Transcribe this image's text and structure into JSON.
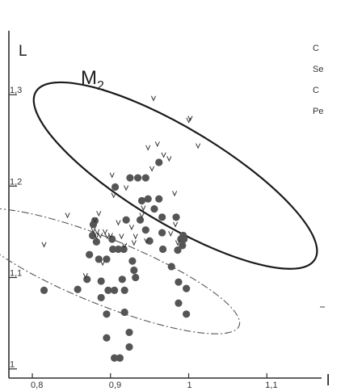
{
  "chart_data": {
    "type": "scatter",
    "title": "M",
    "title_subscript": "2",
    "xlabel": "l",
    "ylabel": "L",
    "xlim": [
      0.77,
      1.17
    ],
    "ylim": [
      0.99,
      1.37
    ],
    "x_ticks": [
      {
        "value": 0.8,
        "label": "0,8"
      },
      {
        "value": 0.9,
        "label": "0,9"
      },
      {
        "value": 1.0,
        "label": "1"
      },
      {
        "value": 1.1,
        "label": "1,1"
      }
    ],
    "y_ticks": [
      {
        "value": 1.0,
        "label": "1"
      },
      {
        "value": 1.1,
        "label": "1,1"
      },
      {
        "value": 1.2,
        "label": "1,2"
      },
      {
        "value": 1.3,
        "label": "1,3"
      }
    ],
    "grid": false,
    "legend_entries": [
      "C",
      "Se",
      "C",
      "Pe"
    ],
    "legend_placement": "top-right (cropped)",
    "series": [
      {
        "marker": "filled-circle",
        "color": "#555555",
        "points": [
          [
            0.815,
            1.086
          ],
          [
            0.858,
            1.087
          ],
          [
            0.87,
            1.098
          ],
          [
            0.873,
            1.125
          ],
          [
            0.877,
            1.146
          ],
          [
            0.878,
            1.158
          ],
          [
            0.88,
            1.162
          ],
          [
            0.882,
            1.139
          ],
          [
            0.885,
            1.12
          ],
          [
            0.888,
            1.096
          ],
          [
            0.888,
            1.078
          ],
          [
            0.895,
            1.12
          ],
          [
            0.897,
            1.086
          ],
          [
            0.895,
            1.06
          ],
          [
            0.895,
            1.034
          ],
          [
            0.902,
            1.142
          ],
          [
            0.903,
            1.131
          ],
          [
            0.905,
            1.086
          ],
          [
            0.905,
            1.012
          ],
          [
            0.906,
            1.199
          ],
          [
            0.91,
            1.131
          ],
          [
            0.912,
            1.012
          ],
          [
            0.915,
            1.098
          ],
          [
            0.917,
            1.131
          ],
          [
            0.918,
            1.086
          ],
          [
            0.918,
            1.062
          ],
          [
            0.92,
            1.163
          ],
          [
            0.924,
            1.04
          ],
          [
            0.924,
            1.024
          ],
          [
            0.925,
            1.209
          ],
          [
            0.928,
            1.118
          ],
          [
            0.93,
            1.108
          ],
          [
            0.935,
            1.209
          ],
          [
            0.932,
            1.1
          ],
          [
            0.938,
            1.163
          ],
          [
            0.94,
            1.184
          ],
          [
            0.945,
            1.209
          ],
          [
            0.945,
            1.152
          ],
          [
            0.948,
            1.186
          ],
          [
            0.95,
            1.14
          ],
          [
            0.956,
            1.175
          ],
          [
            0.962,
            1.226
          ],
          [
            0.962,
            1.186
          ],
          [
            0.966,
            1.166
          ],
          [
            0.966,
            1.149
          ],
          [
            0.967,
            1.131
          ],
          [
            0.978,
            1.112
          ],
          [
            0.984,
            1.166
          ],
          [
            0.986,
            1.13
          ],
          [
            0.987,
            1.095
          ],
          [
            0.987,
            1.072
          ],
          [
            0.99,
            1.142
          ],
          [
            0.992,
            1.135
          ],
          [
            0.997,
            1.088
          ],
          [
            0.997,
            1.06
          ],
          [
            0.993,
            1.146
          ],
          [
            0.994,
            1.142
          ]
        ]
      },
      {
        "marker": "v",
        "color": "#333333",
        "points": [
          [
            0.815,
            1.136
          ],
          [
            0.845,
            1.168
          ],
          [
            0.868,
            1.102
          ],
          [
            0.878,
            1.152
          ],
          [
            0.88,
            1.163
          ],
          [
            0.882,
            1.145
          ],
          [
            0.883,
            1.15
          ],
          [
            0.885,
            1.17
          ],
          [
            0.887,
            1.146
          ],
          [
            0.89,
            1.116
          ],
          [
            0.893,
            1.15
          ],
          [
            0.896,
            1.145
          ],
          [
            0.9,
            1.146
          ],
          [
            0.902,
            1.212
          ],
          [
            0.904,
            1.19
          ],
          [
            0.91,
            1.16
          ],
          [
            0.914,
            1.145
          ],
          [
            0.918,
            1.135
          ],
          [
            0.92,
            1.198
          ],
          [
            0.927,
            1.155
          ],
          [
            0.93,
            1.138
          ],
          [
            0.932,
            1.145
          ],
          [
            0.94,
            1.168
          ],
          [
            0.942,
            1.176
          ],
          [
            0.946,
            1.14
          ],
          [
            0.948,
            1.242
          ],
          [
            0.953,
            1.219
          ],
          [
            0.96,
            1.246
          ],
          [
            0.968,
            1.234
          ],
          [
            0.975,
            1.23
          ],
          [
            0.977,
            1.148
          ],
          [
            0.982,
            1.192
          ],
          [
            0.983,
            1.158
          ],
          [
            0.986,
            1.138
          ],
          [
            1.0,
            1.272
          ],
          [
            1.002,
            1.274
          ],
          [
            1.012,
            1.244
          ],
          [
            0.955,
            1.296
          ]
        ]
      }
    ],
    "ellipses": [
      {
        "style": "solid",
        "center": [
          0.983,
          1.2115
        ],
        "radii": [
          0.061,
          0.178
        ],
        "rotation_deg": -59
      },
      {
        "style": "dash-dot",
        "center": [
          0.891,
          1.107
        ],
        "radii": [
          0.042,
          0.16
        ],
        "rotation_deg": -68
      }
    ]
  }
}
